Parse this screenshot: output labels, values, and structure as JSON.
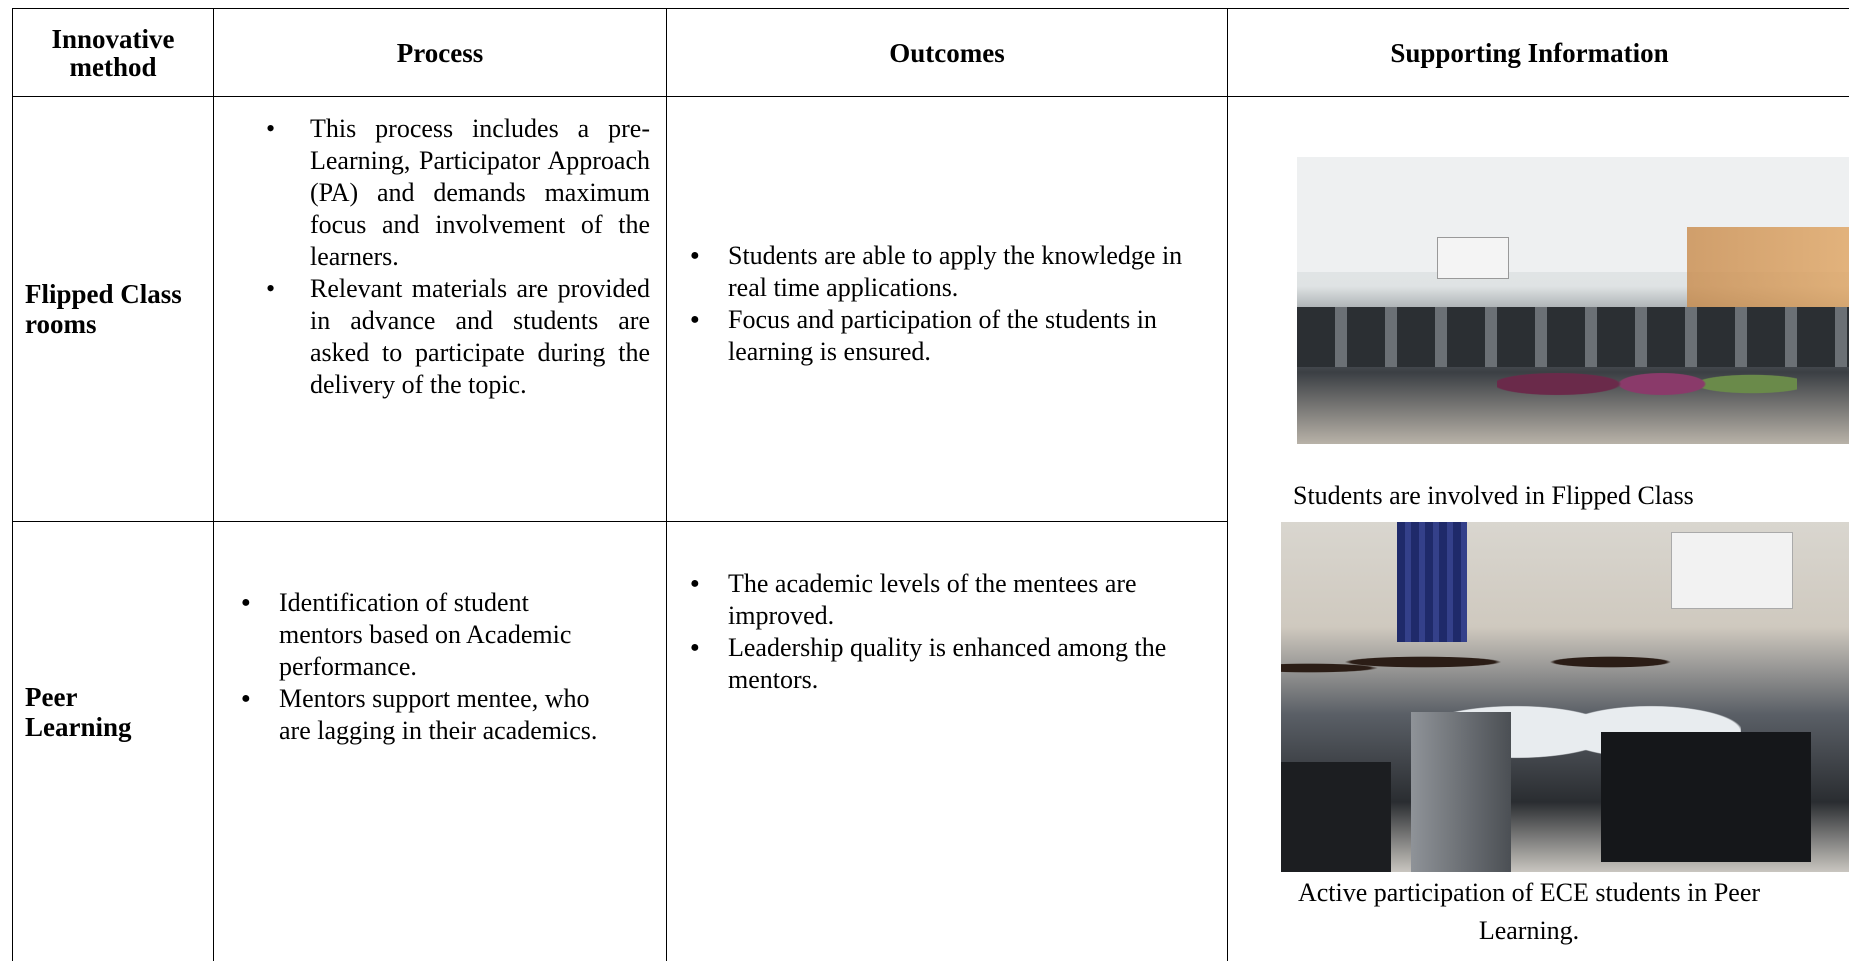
{
  "table": {
    "headers": [
      "Innovative method",
      "Process",
      "Outcomes",
      "Supporting Information"
    ],
    "rows": [
      {
        "method": "Flipped Class rooms",
        "process": [
          "This process includes a pre-Learning, Participator Approach (PA) and demands maximum focus and involvement of the learners.",
          "Relevant materials are provided in advance and students are asked to participate during the delivery of the topic."
        ],
        "outcomes": [
          "Students are able to apply the knowledge in real time applications.",
          "Focus and participation of the students in learning is ensured."
        ],
        "caption": "Students are involved in Flipped Class"
      },
      {
        "method": "Peer Learning",
        "process": [
          "Identification of student mentors based on Academic performance.",
          "Mentors support mentee, who are lagging in their academics."
        ],
        "outcomes": [
          "The academic levels of the mentees are improved.",
          "Leadership quality is enhanced among the mentors."
        ],
        "caption": "Active participation of ECE students in Peer Learning."
      }
    ]
  }
}
